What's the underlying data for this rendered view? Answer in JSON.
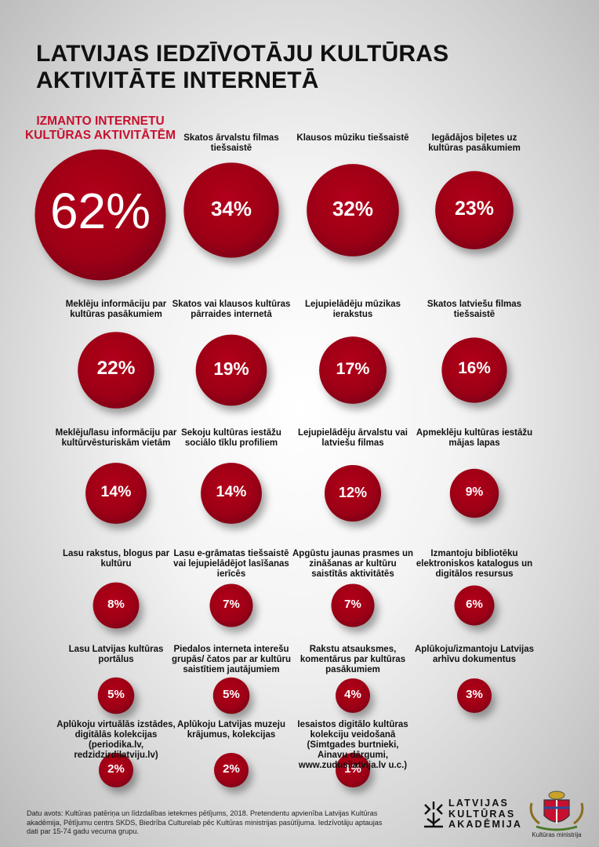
{
  "title": "LATVIJAS IEDZĪVOTĀJU KULTŪRAS AKTIVITĀTE INTERNETĀ",
  "accent_color": "#c8102e",
  "chart_data": {
    "type": "bubble",
    "headline_label": "IZMANTO INTERNETU KULTŪRAS AKTIVITĀTĒM",
    "headline_value": 62,
    "unit": "%",
    "items": [
      {
        "label": "Skatos ārvalstu filmas tiešsaistē",
        "value": 34
      },
      {
        "label": "Klausos mūziku tiešsaistē",
        "value": 32
      },
      {
        "label": "Iegādājos biļetes uz kultūras pasākumiem",
        "value": 23
      },
      {
        "label": "Meklēju informāciju par kultūras pasākumiem",
        "value": 22
      },
      {
        "label": "Skatos vai klausos kultūras pārraides internetā",
        "value": 19
      },
      {
        "label": "Lejupielādēju mūzikas ierakstus",
        "value": 17
      },
      {
        "label": "Skatos latviešu filmas tiešsaistē",
        "value": 16
      },
      {
        "label": "Meklēju/lasu informāciju par kultūrvēsturiskām vietām",
        "value": 14
      },
      {
        "label": "Sekoju kultūras iestāžu sociālo tīklu profiliem",
        "value": 14
      },
      {
        "label": "Lejupielādēju ārvalstu vai latviešu filmas",
        "value": 12
      },
      {
        "label": "Apmeklēju kultūras iestāžu mājas lapas",
        "value": 9
      },
      {
        "label": "Lasu rakstus, blogus par kultūru",
        "value": 8
      },
      {
        "label": "Lasu e-grāmatas tiešsaistē vai lejupielādējot lasīšanas ierīcēs",
        "value": 7
      },
      {
        "label": "Apgūstu jaunas prasmes un zināšanas ar kultūru saistītās aktivitātēs",
        "value": 7
      },
      {
        "label": "Izmantoju bibliotēku elektroniskos katalogus un digitālos resursus",
        "value": 6
      },
      {
        "label": "Lasu Latvijas kultūras portālus",
        "value": 5
      },
      {
        "label": "Piedalos interneta interešu grupās/ čatos par ar kultūru saistītiem jautājumiem",
        "value": 5
      },
      {
        "label": "Rakstu atsauksmes, komentārus par kultūras pasākumiem",
        "value": 4
      },
      {
        "label": "Aplūkoju/izmantoju Latvijas arhīvu dokumentus",
        "value": 3
      },
      {
        "label": "Aplūkoju virtuālās izstādes, digitālās kolekcijas (periodika.lv, redzidzirdilatviju.lv)",
        "value": 2
      },
      {
        "label": "Aplūkoju Latvijas muzeju krājumus, kolekcijas",
        "value": 2
      },
      {
        "label": "Iesaistos digitālo kultūras kolekciju veidošanā (Simtgades burtnieki, Ainavu dārgumi, www.zudusilatvija.lv u.c.)",
        "value": 1
      }
    ]
  },
  "footer": {
    "source": "Datu avots: Kultūras patēriņa un līdzdalības ietekmes pētījums, 2018. Pretendentu apvienība Latvijas Kultūras akadēmija, Pētījumu centrs SKDS, Biedrība Culturelab pēc Kultūras ministrijas pasūtījuma. Iedzīvotāju aptaujas dati par 15-74 gadu vecuma grupu."
  },
  "logos": {
    "lka_line1": "LATVIJAS",
    "lka_line2": "KULTŪRAS",
    "lka_line3": "AKADĒMIJA",
    "km_label": "Kultūras ministrija"
  }
}
